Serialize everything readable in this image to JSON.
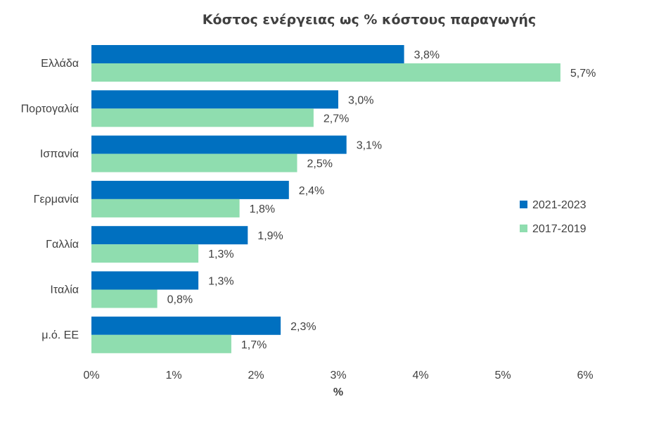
{
  "chart_data": {
    "type": "bar",
    "orientation": "horizontal",
    "title": "Κόστος ενέργειας ως % κόστους παραγωγής",
    "xlabel": "%",
    "ylabel": "",
    "xlim": [
      0,
      6
    ],
    "x_ticks": [
      0,
      1,
      2,
      3,
      4,
      5,
      6
    ],
    "x_tick_labels": [
      "0%",
      "1%",
      "2%",
      "3%",
      "4%",
      "5%",
      "6%"
    ],
    "categories": [
      "Ελλάδα",
      "Πορτογαλία",
      "Ισπανία",
      "Γερμανία",
      "Γαλλία",
      "Ιταλία",
      "μ.ό. ΕΕ"
    ],
    "series": [
      {
        "name": "2021-2023",
        "color": "#0070C0",
        "values": [
          3.8,
          3.0,
          3.1,
          2.4,
          1.9,
          1.3,
          2.3
        ],
        "labels": [
          "3,8%",
          "3,0%",
          "3,1%",
          "2,4%",
          "1,9%",
          "1,3%",
          "2,3%"
        ]
      },
      {
        "name": "2017-2019",
        "color": "#8FDDAF",
        "values": [
          5.7,
          2.7,
          2.5,
          1.8,
          1.3,
          0.8,
          1.7
        ],
        "labels": [
          "5,7%",
          "2,7%",
          "2,5%",
          "1,8%",
          "1,3%",
          "0,8%",
          "1,7%"
        ]
      }
    ],
    "grid": false,
    "legend_position": "right"
  }
}
